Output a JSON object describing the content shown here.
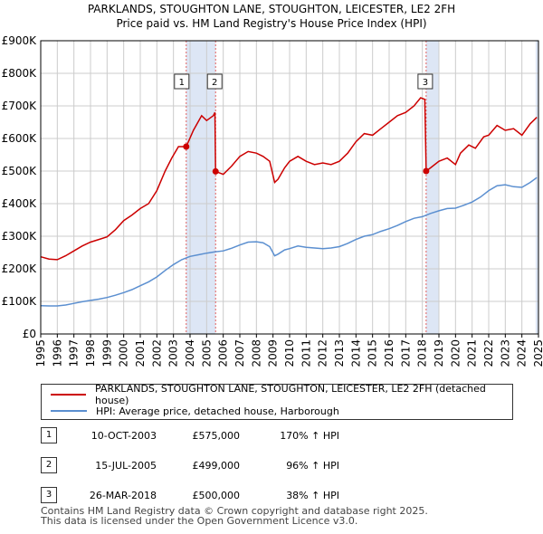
{
  "title_line1": "PARKLANDS, STOUGHTON LANE, STOUGHTON, LEICESTER, LE2 2FH",
  "title_line2": "Price paid vs. HM Land Registry's House Price Index (HPI)",
  "chart_data": {
    "type": "line",
    "xlim": [
      1995,
      2025
    ],
    "ylim": [
      0,
      900000
    ],
    "ytick_labels": [
      "£0",
      "£100K",
      "£200K",
      "£300K",
      "£400K",
      "£500K",
      "£600K",
      "£700K",
      "£800K",
      "£900K"
    ],
    "ytick_values": [
      0,
      100000,
      200000,
      300000,
      400000,
      500000,
      600000,
      700000,
      800000,
      900000
    ],
    "xtick_labels": [
      "1995",
      "1996",
      "1997",
      "1998",
      "1999",
      "2000",
      "2001",
      "2002",
      "2003",
      "2004",
      "2005",
      "2006",
      "2007",
      "2008",
      "2009",
      "2010",
      "2011",
      "2012",
      "2013",
      "2014",
      "2015",
      "2016",
      "2017",
      "2018",
      "2019",
      "2020",
      "2021",
      "2022",
      "2023",
      "2024",
      "2025"
    ],
    "grid": true,
    "colors": {
      "property": "#cc0000",
      "hpi": "#5b8fd0",
      "shade": "#dde6f5",
      "vline": "#e06060"
    },
    "series": [
      {
        "name": "PARKLANDS, STOUGHTON LANE, STOUGHTON, LEICESTER, LE2 2FH (detached house)",
        "x": [
          1995.0,
          1995.5,
          1996.0,
          1996.5,
          1997.0,
          1997.5,
          1998.0,
          1998.5,
          1999.0,
          1999.5,
          2000.0,
          2000.5,
          2001.0,
          2001.5,
          2002.0,
          2002.5,
          2002.9,
          2003.3,
          2003.77,
          2004.2,
          2004.7,
          2005.0,
          2005.4,
          2005.5,
          2005.54,
          2006.0,
          2006.5,
          2007.0,
          2007.5,
          2008.0,
          2008.4,
          2008.8,
          2009.1,
          2009.3,
          2009.7,
          2010.0,
          2010.5,
          2011.0,
          2011.5,
          2012.0,
          2012.5,
          2013.0,
          2013.5,
          2014.0,
          2014.5,
          2015.0,
          2015.5,
          2016.0,
          2016.5,
          2017.0,
          2017.5,
          2017.9,
          2018.15,
          2018.23,
          2018.5,
          2019.0,
          2019.5,
          2020.0,
          2020.3,
          2020.8,
          2021.2,
          2021.7,
          2022.0,
          2022.5,
          2023.0,
          2023.5,
          2024.0,
          2024.5,
          2024.9
        ],
        "y": [
          237000,
          230000,
          228000,
          240000,
          255000,
          270000,
          282000,
          290000,
          298000,
          320000,
          348000,
          365000,
          385000,
          400000,
          440000,
          500000,
          540000,
          575000,
          575000,
          625000,
          670000,
          655000,
          670000,
          680000,
          499000,
          490000,
          515000,
          545000,
          560000,
          555000,
          545000,
          530000,
          465000,
          475000,
          510000,
          530000,
          545000,
          530000,
          520000,
          525000,
          520000,
          530000,
          555000,
          590000,
          615000,
          610000,
          630000,
          650000,
          670000,
          680000,
          700000,
          725000,
          720000,
          500000,
          510000,
          530000,
          540000,
          520000,
          555000,
          580000,
          570000,
          605000,
          610000,
          640000,
          625000,
          630000,
          610000,
          645000,
          665000
        ]
      },
      {
        "name": "HPI: Average price, detached house, Harborough",
        "x": [
          1995.0,
          1995.5,
          1996.0,
          1996.5,
          1997.0,
          1997.5,
          1998.0,
          1998.5,
          1999.0,
          1999.5,
          2000.0,
          2000.5,
          2001.0,
          2001.5,
          2002.0,
          2002.5,
          2003.0,
          2003.5,
          2004.0,
          2004.5,
          2005.0,
          2005.5,
          2006.0,
          2006.5,
          2007.0,
          2007.5,
          2008.0,
          2008.4,
          2008.8,
          2009.1,
          2009.3,
          2009.7,
          2010.0,
          2010.5,
          2011.0,
          2011.5,
          2012.0,
          2012.5,
          2013.0,
          2013.5,
          2014.0,
          2014.5,
          2015.0,
          2015.5,
          2016.0,
          2016.5,
          2017.0,
          2017.5,
          2018.0,
          2018.5,
          2019.0,
          2019.5,
          2020.0,
          2020.5,
          2021.0,
          2021.5,
          2022.0,
          2022.5,
          2023.0,
          2023.5,
          2024.0,
          2024.5,
          2024.9
        ],
        "y": [
          87000,
          86000,
          86000,
          89000,
          94000,
          99000,
          103000,
          107000,
          112000,
          119000,
          127000,
          136000,
          148000,
          160000,
          175000,
          195000,
          213000,
          228000,
          238000,
          243000,
          248000,
          252000,
          255000,
          263000,
          273000,
          282000,
          283000,
          280000,
          268000,
          240000,
          245000,
          258000,
          262000,
          270000,
          266000,
          264000,
          262000,
          264000,
          268000,
          278000,
          290000,
          300000,
          305000,
          315000,
          323000,
          333000,
          345000,
          355000,
          360000,
          370000,
          378000,
          385000,
          386000,
          395000,
          405000,
          420000,
          440000,
          455000,
          458000,
          452000,
          450000,
          465000,
          480000
        ]
      }
    ],
    "sales": [
      {
        "label": "1",
        "x": 2003.77,
        "y": 575000
      },
      {
        "label": "2",
        "x": 2005.54,
        "y": 499000
      },
      {
        "label": "3",
        "x": 2018.23,
        "y": 500000
      }
    ],
    "shaded_ranges": [
      [
        2003.77,
        2005.54
      ],
      [
        2018.23,
        2019.0
      ],
      [
        2024.83,
        2025.0
      ]
    ]
  },
  "legend": {
    "property_label": "PARKLANDS, STOUGHTON LANE, STOUGHTON, LEICESTER, LE2 2FH (detached house)",
    "hpi_label": "HPI: Average price, detached house, Harborough"
  },
  "sales_table": [
    {
      "num": "1",
      "date": "10-OCT-2003",
      "price": "£575,000",
      "hpi": "170% ↑ HPI"
    },
    {
      "num": "2",
      "date": "15-JUL-2005",
      "price": "£499,000",
      "hpi": "96% ↑ HPI"
    },
    {
      "num": "3",
      "date": "26-MAR-2018",
      "price": "£500,000",
      "hpi": "38% ↑ HPI"
    }
  ],
  "footer": {
    "line1": "Contains HM Land Registry data © Crown copyright and database right 2025.",
    "line2": "This data is licensed under the Open Government Licence v3.0."
  }
}
